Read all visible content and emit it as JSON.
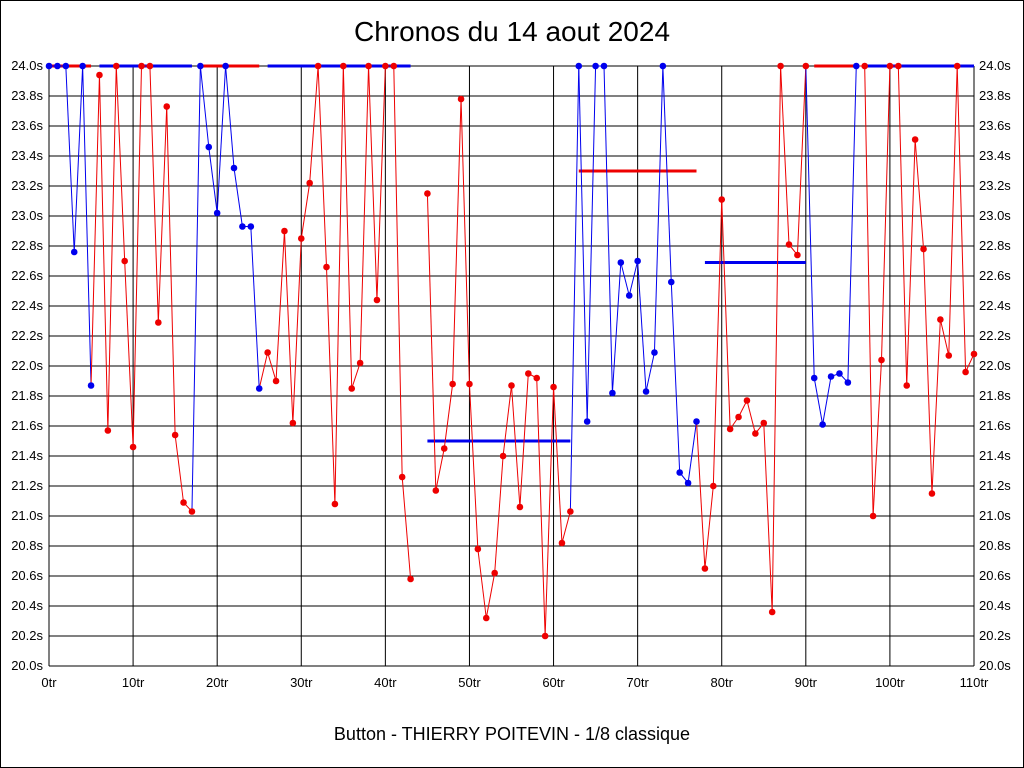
{
  "chart_data": {
    "type": "line",
    "title": "Chronos du 14 aout 2024",
    "footer": "Button - THIERRY POITEVIN - 1/8 classique",
    "xlim": [
      0,
      110
    ],
    "ylim": [
      20.0,
      24.0
    ],
    "grid": true,
    "x_ticks": [
      "0tr",
      "10tr",
      "20tr",
      "30tr",
      "40tr",
      "50tr",
      "60tr",
      "70tr",
      "80tr",
      "90tr",
      "100tr",
      "110tr"
    ],
    "y_ticks": [
      "20.0s",
      "20.2s",
      "20.4s",
      "20.6s",
      "20.8s",
      "21.0s",
      "21.2s",
      "21.4s",
      "21.6s",
      "21.8s",
      "22.0s",
      "22.2s",
      "22.4s",
      "22.6s",
      "22.8s",
      "23.0s",
      "23.2s",
      "23.4s",
      "23.6s",
      "23.8s",
      "24.0s"
    ],
    "colors": {
      "red": "#ee0000",
      "blue": "#0000ee",
      "grid": "#000000"
    },
    "points": [
      {
        "x": 0,
        "y": 24.0,
        "c": "blue"
      },
      {
        "x": 1,
        "y": 24.0,
        "c": "blue"
      },
      {
        "x": 2,
        "y": 24.0,
        "c": "blue"
      },
      {
        "x": 3,
        "y": 22.76,
        "c": "blue"
      },
      {
        "x": 4,
        "y": 24.0,
        "c": "blue"
      },
      {
        "x": 5,
        "y": 21.87,
        "c": "blue"
      },
      {
        "x": 6,
        "y": 23.94,
        "c": "red"
      },
      {
        "x": 7,
        "y": 21.57,
        "c": "red"
      },
      {
        "x": 8,
        "y": 24.0,
        "c": "red"
      },
      {
        "x": 9,
        "y": 22.7,
        "c": "red"
      },
      {
        "x": 10,
        "y": 21.46,
        "c": "red"
      },
      {
        "x": 11,
        "y": 24.0,
        "c": "red"
      },
      {
        "x": 12,
        "y": 24.0,
        "c": "red"
      },
      {
        "x": 13,
        "y": 22.29,
        "c": "red"
      },
      {
        "x": 14,
        "y": 23.73,
        "c": "red"
      },
      {
        "x": 15,
        "y": 21.54,
        "c": "red"
      },
      {
        "x": 16,
        "y": 21.09,
        "c": "red"
      },
      {
        "x": 17,
        "y": 21.03,
        "c": "red"
      },
      {
        "x": 18,
        "y": 24.0,
        "c": "blue"
      },
      {
        "x": 19,
        "y": 23.46,
        "c": "blue"
      },
      {
        "x": 20,
        "y": 23.02,
        "c": "blue"
      },
      {
        "x": 21,
        "y": 24.0,
        "c": "blue"
      },
      {
        "x": 22,
        "y": 23.32,
        "c": "blue"
      },
      {
        "x": 23,
        "y": 22.93,
        "c": "blue"
      },
      {
        "x": 24,
        "y": 22.93,
        "c": "blue"
      },
      {
        "x": 25,
        "y": 21.85,
        "c": "blue"
      },
      {
        "x": 26,
        "y": 22.09,
        "c": "red"
      },
      {
        "x": 27,
        "y": 21.9,
        "c": "red"
      },
      {
        "x": 28,
        "y": 22.9,
        "c": "red"
      },
      {
        "x": 29,
        "y": 21.62,
        "c": "red"
      },
      {
        "x": 30,
        "y": 22.85,
        "c": "red"
      },
      {
        "x": 31,
        "y": 23.22,
        "c": "red"
      },
      {
        "x": 32,
        "y": 24.0,
        "c": "red"
      },
      {
        "x": 33,
        "y": 22.66,
        "c": "red"
      },
      {
        "x": 34,
        "y": 21.08,
        "c": "red"
      },
      {
        "x": 35,
        "y": 24.0,
        "c": "red"
      },
      {
        "x": 36,
        "y": 21.85,
        "c": "red"
      },
      {
        "x": 37,
        "y": 22.02,
        "c": "red"
      },
      {
        "x": 38,
        "y": 24.0,
        "c": "red"
      },
      {
        "x": 39,
        "y": 22.44,
        "c": "red"
      },
      {
        "x": 40,
        "y": 24.0,
        "c": "red"
      },
      {
        "x": 41,
        "y": 24.0,
        "c": "red"
      },
      {
        "x": 42,
        "y": 21.26,
        "c": "red"
      },
      {
        "x": 43,
        "y": 20.58,
        "c": "red"
      },
      {
        "x": 45,
        "y": 23.15,
        "c": "red"
      },
      {
        "x": 46,
        "y": 21.17,
        "c": "red"
      },
      {
        "x": 47,
        "y": 21.45,
        "c": "red"
      },
      {
        "x": 48,
        "y": 21.88,
        "c": "red"
      },
      {
        "x": 49,
        "y": 23.78,
        "c": "red"
      },
      {
        "x": 50,
        "y": 21.88,
        "c": "red"
      },
      {
        "x": 51,
        "y": 20.78,
        "c": "red"
      },
      {
        "x": 52,
        "y": 20.32,
        "c": "red"
      },
      {
        "x": 53,
        "y": 20.62,
        "c": "red"
      },
      {
        "x": 54,
        "y": 21.4,
        "c": "red"
      },
      {
        "x": 55,
        "y": 21.87,
        "c": "red"
      },
      {
        "x": 56,
        "y": 21.06,
        "c": "red"
      },
      {
        "x": 57,
        "y": 21.95,
        "c": "red"
      },
      {
        "x": 58,
        "y": 21.92,
        "c": "red"
      },
      {
        "x": 59,
        "y": 20.2,
        "c": "red"
      },
      {
        "x": 60,
        "y": 21.86,
        "c": "red"
      },
      {
        "x": 61,
        "y": 20.82,
        "c": "red"
      },
      {
        "x": 62,
        "y": 21.03,
        "c": "red"
      },
      {
        "x": 63,
        "y": 24.0,
        "c": "blue"
      },
      {
        "x": 64,
        "y": 21.63,
        "c": "blue"
      },
      {
        "x": 65,
        "y": 24.0,
        "c": "blue"
      },
      {
        "x": 66,
        "y": 24.0,
        "c": "blue"
      },
      {
        "x": 67,
        "y": 21.82,
        "c": "blue"
      },
      {
        "x": 68,
        "y": 22.69,
        "c": "blue"
      },
      {
        "x": 69,
        "y": 22.47,
        "c": "blue"
      },
      {
        "x": 70,
        "y": 22.7,
        "c": "blue"
      },
      {
        "x": 71,
        "y": 21.83,
        "c": "blue"
      },
      {
        "x": 72,
        "y": 22.09,
        "c": "blue"
      },
      {
        "x": 73,
        "y": 24.0,
        "c": "blue"
      },
      {
        "x": 74,
        "y": 22.56,
        "c": "blue"
      },
      {
        "x": 75,
        "y": 21.29,
        "c": "blue"
      },
      {
        "x": 76,
        "y": 21.22,
        "c": "blue"
      },
      {
        "x": 77,
        "y": 21.63,
        "c": "blue"
      },
      {
        "x": 78,
        "y": 20.65,
        "c": "red"
      },
      {
        "x": 79,
        "y": 21.2,
        "c": "red"
      },
      {
        "x": 80,
        "y": 23.11,
        "c": "red"
      },
      {
        "x": 81,
        "y": 21.58,
        "c": "red"
      },
      {
        "x": 82,
        "y": 21.66,
        "c": "red"
      },
      {
        "x": 83,
        "y": 21.77,
        "c": "red"
      },
      {
        "x": 84,
        "y": 21.55,
        "c": "red"
      },
      {
        "x": 85,
        "y": 21.62,
        "c": "red"
      },
      {
        "x": 86,
        "y": 20.36,
        "c": "red"
      },
      {
        "x": 87,
        "y": 24.0,
        "c": "red"
      },
      {
        "x": 88,
        "y": 22.81,
        "c": "red"
      },
      {
        "x": 89,
        "y": 22.74,
        "c": "red"
      },
      {
        "x": 90,
        "y": 24.0,
        "c": "red"
      },
      {
        "x": 91,
        "y": 21.92,
        "c": "blue"
      },
      {
        "x": 92,
        "y": 21.61,
        "c": "blue"
      },
      {
        "x": 93,
        "y": 21.93,
        "c": "blue"
      },
      {
        "x": 94,
        "y": 21.95,
        "c": "blue"
      },
      {
        "x": 95,
        "y": 21.89,
        "c": "blue"
      },
      {
        "x": 96,
        "y": 24.0,
        "c": "blue"
      },
      {
        "x": 97,
        "y": 24.0,
        "c": "red"
      },
      {
        "x": 98,
        "y": 21.0,
        "c": "red"
      },
      {
        "x": 99,
        "y": 22.04,
        "c": "red"
      },
      {
        "x": 100,
        "y": 24.0,
        "c": "red"
      },
      {
        "x": 101,
        "y": 24.0,
        "c": "red"
      },
      {
        "x": 102,
        "y": 21.87,
        "c": "red"
      },
      {
        "x": 103,
        "y": 23.51,
        "c": "red"
      },
      {
        "x": 104,
        "y": 22.78,
        "c": "red"
      },
      {
        "x": 105,
        "y": 21.15,
        "c": "red"
      },
      {
        "x": 106,
        "y": 22.31,
        "c": "red"
      },
      {
        "x": 107,
        "y": 22.07,
        "c": "red"
      },
      {
        "x": 108,
        "y": 24.0,
        "c": "red"
      },
      {
        "x": 109,
        "y": 21.96,
        "c": "red"
      },
      {
        "x": 110,
        "y": 22.08,
        "c": "red"
      }
    ],
    "breaks_before": [
      45
    ],
    "reference_lines": [
      {
        "x1": 0,
        "x2": 5,
        "y": 24.0,
        "c": "red"
      },
      {
        "x1": 6,
        "x2": 17,
        "y": 24.0,
        "c": "blue"
      },
      {
        "x1": 18,
        "x2": 25,
        "y": 24.0,
        "c": "red"
      },
      {
        "x1": 26,
        "x2": 43,
        "y": 24.0,
        "c": "blue"
      },
      {
        "x1": 45,
        "x2": 62,
        "y": 21.5,
        "c": "blue"
      },
      {
        "x1": 63,
        "x2": 77,
        "y": 23.3,
        "c": "red"
      },
      {
        "x1": 78,
        "x2": 90,
        "y": 22.69,
        "c": "blue"
      },
      {
        "x1": 91,
        "x2": 96,
        "y": 24.0,
        "c": "red"
      },
      {
        "x1": 97,
        "x2": 110,
        "y": 24.0,
        "c": "blue"
      }
    ]
  }
}
